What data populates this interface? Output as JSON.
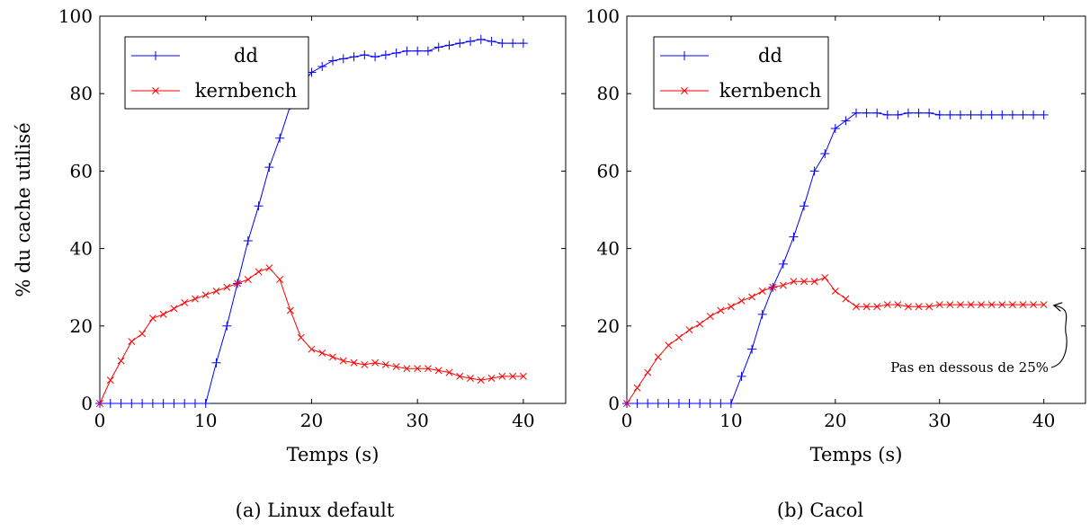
{
  "chart_data": [
    {
      "type": "line",
      "caption": "(a) Linux default",
      "xlabel": "Temps (s)",
      "ylabel": "% du cache utilisé",
      "xlim": [
        0,
        44
      ],
      "ylim": [
        0,
        100
      ],
      "xticks": [
        "0",
        "10",
        "20",
        "30",
        "40"
      ],
      "yticks": [
        "0",
        "20",
        "40",
        "60",
        "80",
        "100"
      ],
      "legend_position": "top-left",
      "series": [
        {
          "name": "dd",
          "color": "#0000ff",
          "marker": "plus",
          "x": [
            0,
            1,
            2,
            3,
            4,
            5,
            6,
            7,
            8,
            9,
            10,
            11,
            12,
            13,
            14,
            15,
            16,
            17,
            18,
            19,
            20,
            21,
            22,
            23,
            24,
            25,
            26,
            27,
            28,
            29,
            30,
            31,
            32,
            33,
            34,
            35,
            36,
            37,
            38,
            39,
            40
          ],
          "y": [
            0,
            0,
            0,
            0,
            0,
            0,
            0,
            0,
            0,
            0,
            0,
            10.5,
            20,
            31,
            42,
            51,
            61,
            68.5,
            77,
            82,
            85.5,
            87,
            88.5,
            89,
            89.5,
            90,
            89.5,
            90,
            90.5,
            91,
            91,
            91,
            92,
            92.5,
            93,
            93.5,
            94,
            93.5,
            93,
            93,
            93
          ]
        },
        {
          "name": "kernbench",
          "color": "#ff0000",
          "marker": "cross",
          "x": [
            0,
            1,
            2,
            3,
            4,
            5,
            6,
            7,
            8,
            9,
            10,
            11,
            12,
            13,
            14,
            15,
            16,
            17,
            18,
            19,
            20,
            21,
            22,
            23,
            24,
            25,
            26,
            27,
            28,
            29,
            30,
            31,
            32,
            33,
            34,
            35,
            36,
            37,
            38,
            39,
            40
          ],
          "y": [
            0,
            6,
            11,
            16,
            18,
            22,
            23,
            24.5,
            26,
            27,
            28,
            29,
            30,
            31,
            32,
            34,
            35,
            32,
            24,
            17,
            14,
            13,
            12,
            11,
            10.5,
            10,
            10.5,
            10,
            9.5,
            9,
            9,
            9,
            8.5,
            8,
            7,
            6.5,
            6,
            6.5,
            7,
            7,
            7
          ]
        }
      ]
    },
    {
      "type": "line",
      "caption": "(b) Cacol",
      "xlabel": "Temps (s)",
      "ylabel": "",
      "xlim": [
        0,
        44
      ],
      "ylim": [
        0,
        100
      ],
      "xticks": [
        "0",
        "10",
        "20",
        "30",
        "40"
      ],
      "yticks": [
        "0",
        "20",
        "40",
        "60",
        "80",
        "100"
      ],
      "legend_position": "top-left",
      "annotation": "Pas en dessous de 25%",
      "series": [
        {
          "name": "dd",
          "color": "#0000ff",
          "marker": "plus",
          "x": [
            0,
            1,
            2,
            3,
            4,
            5,
            6,
            7,
            8,
            9,
            10,
            11,
            12,
            13,
            14,
            15,
            16,
            17,
            18,
            19,
            20,
            21,
            22,
            23,
            24,
            25,
            26,
            27,
            28,
            29,
            30,
            31,
            32,
            33,
            34,
            35,
            36,
            37,
            38,
            39,
            40
          ],
          "y": [
            0,
            0,
            0,
            0,
            0,
            0,
            0,
            0,
            0,
            0,
            0,
            7,
            14,
            23,
            30,
            36,
            43,
            51,
            60,
            64.5,
            71,
            73,
            75,
            75,
            75,
            74.5,
            74.5,
            75,
            75,
            75,
            74.5,
            74.5,
            74.5,
            74.5,
            74.5,
            74.5,
            74.5,
            74.5,
            74.5,
            74.5,
            74.5
          ]
        },
        {
          "name": "kernbench",
          "color": "#ff0000",
          "marker": "cross",
          "x": [
            0,
            1,
            2,
            3,
            4,
            5,
            6,
            7,
            8,
            9,
            10,
            11,
            12,
            13,
            14,
            15,
            16,
            17,
            18,
            19,
            20,
            21,
            22,
            23,
            24,
            25,
            26,
            27,
            28,
            29,
            30,
            31,
            32,
            33,
            34,
            35,
            36,
            37,
            38,
            39,
            40
          ],
          "y": [
            0,
            4,
            8,
            12,
            15,
            17,
            19,
            20.5,
            22.5,
            24,
            25,
            26.5,
            27.5,
            29,
            30,
            30.5,
            31.5,
            31.5,
            31.5,
            32.5,
            29,
            27,
            25,
            25,
            25,
            25.5,
            25.5,
            25,
            25,
            25,
            25.5,
            25.5,
            25.5,
            25.5,
            25.5,
            25.5,
            25.5,
            25.5,
            25.5,
            25.5,
            25.5
          ]
        }
      ]
    }
  ]
}
